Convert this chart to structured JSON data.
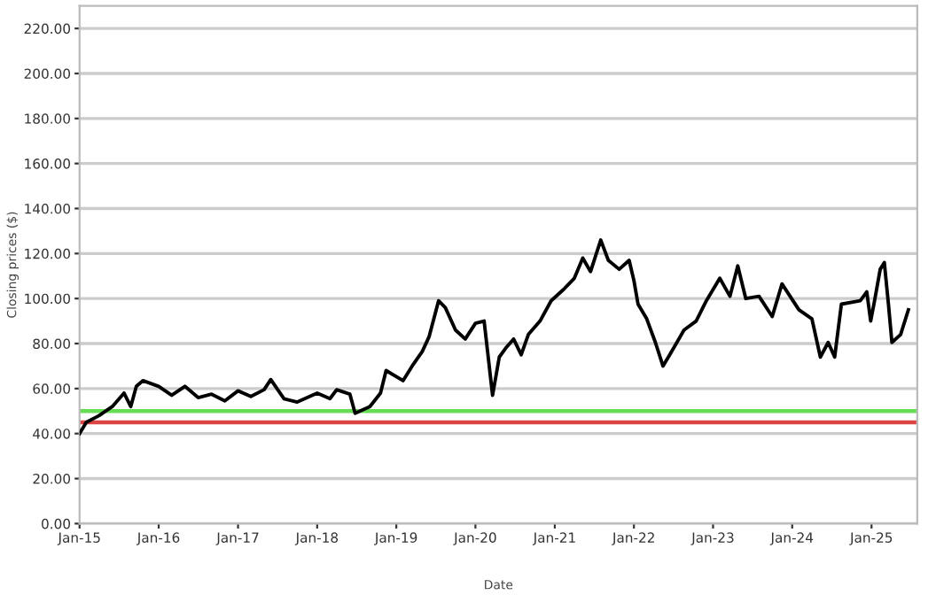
{
  "chart_data": {
    "type": "line",
    "xlabel": "Date",
    "ylabel": "Closing prices ($)",
    "x": [
      "2015-01-01",
      "2015-02-01",
      "2015-04-01",
      "2015-06-01",
      "2015-07-25",
      "2015-08-25",
      "2015-09-20",
      "2015-10-20",
      "2016-01-01",
      "2016-03-01",
      "2016-05-01",
      "2016-07-01",
      "2016-09-01",
      "2016-11-01",
      "2017-01-01",
      "2017-03-01",
      "2017-05-01",
      "2017-06-01",
      "2017-08-01",
      "2017-10-01",
      "2018-01-01",
      "2018-03-01",
      "2018-04-01",
      "2018-06-01",
      "2018-06-25",
      "2018-09-01",
      "2018-10-20",
      "2018-11-15",
      "2019-02-01",
      "2019-03-15",
      "2019-05-01",
      "2019-06-01",
      "2019-07-15",
      "2019-08-15",
      "2019-10-01",
      "2019-11-15",
      "2020-01-01",
      "2020-02-10",
      "2020-03-20",
      "2020-04-20",
      "2020-05-20",
      "2020-06-25",
      "2020-07-30",
      "2020-09-01",
      "2020-10-25",
      "2020-12-15",
      "2021-02-10",
      "2021-04-01",
      "2021-05-10",
      "2021-06-15",
      "2021-08-01",
      "2021-09-05",
      "2021-10-25",
      "2021-12-10",
      "2022-01-01",
      "2022-01-20",
      "2022-03-01",
      "2022-04-10",
      "2022-05-15",
      "2022-06-15",
      "2022-08-20",
      "2022-10-15",
      "2022-12-01",
      "2023-02-01",
      "2023-03-20",
      "2023-04-25",
      "2023-06-01",
      "2023-08-01",
      "2023-10-01",
      "2023-11-15",
      "2024-02-01",
      "2024-04-01",
      "2024-05-10",
      "2024-06-15",
      "2024-07-15",
      "2024-08-15",
      "2024-11-10",
      "2024-12-10",
      "2024-12-28",
      "2025-01-15",
      "2025-02-10",
      "2025-03-01",
      "2025-03-20",
      "2025-04-05",
      "2025-05-15",
      "2025-06-20"
    ],
    "series": [
      {
        "color": "#000000",
        "values": [
          40,
          45,
          48,
          52,
          58,
          52,
          61,
          63.5,
          61,
          57,
          61,
          56,
          57.5,
          54.5,
          59,
          56.5,
          59.5,
          64,
          55.5,
          54,
          58,
          55.5,
          59.5,
          57.5,
          49,
          52,
          58,
          68,
          63.5,
          70,
          76.5,
          83,
          99,
          96,
          86,
          82,
          89,
          90,
          57,
          74,
          78,
          82,
          75,
          84,
          90,
          99,
          104,
          109,
          118,
          112,
          126,
          117,
          113,
          117,
          108,
          97.5,
          91,
          80.5,
          70,
          75,
          86,
          90,
          99,
          109,
          101,
          114.5,
          100,
          101,
          92,
          106.5,
          95,
          91,
          74,
          80.5,
          74,
          97.5,
          99,
          103,
          90,
          99,
          113,
          116,
          97.5,
          80.5,
          84,
          95
        ]
      }
    ],
    "xlim": [
      "2015-01-01",
      "2025-07-31"
    ],
    "xticks": [
      {
        "value": "2015-01-01",
        "label": "Jan-15"
      },
      {
        "value": "2016-01-01",
        "label": "Jan-16"
      },
      {
        "value": "2017-01-01",
        "label": "Jan-17"
      },
      {
        "value": "2018-01-01",
        "label": "Jan-18"
      },
      {
        "value": "2019-01-01",
        "label": "Jan-19"
      },
      {
        "value": "2020-01-01",
        "label": "Jan-20"
      },
      {
        "value": "2021-01-01",
        "label": "Jan-21"
      },
      {
        "value": "2022-01-01",
        "label": "Jan-22"
      },
      {
        "value": "2023-01-01",
        "label": "Jan-23"
      },
      {
        "value": "2024-01-01",
        "label": "Jan-24"
      },
      {
        "value": "2025-01-01",
        "label": "Jan-25"
      }
    ],
    "ylim": [
      0,
      230
    ],
    "yticks": [
      {
        "value": 0,
        "label": "0.00"
      },
      {
        "value": 20,
        "label": "20.00"
      },
      {
        "value": 40,
        "label": "40.00"
      },
      {
        "value": 60,
        "label": "60.00"
      },
      {
        "value": 80,
        "label": "80.00"
      },
      {
        "value": 100,
        "label": "100.00"
      },
      {
        "value": 120,
        "label": "120.00"
      },
      {
        "value": 140,
        "label": "140.00"
      },
      {
        "value": 160,
        "label": "160.00"
      },
      {
        "value": 180,
        "label": "180.00"
      },
      {
        "value": 200,
        "label": "200.00"
      },
      {
        "value": 220,
        "label": "220.00"
      }
    ],
    "ref_lines": [
      {
        "axis": "y",
        "value": 50,
        "color": "#66dd55"
      },
      {
        "axis": "y",
        "value": 45,
        "color": "#dd4444"
      }
    ],
    "grid": "y",
    "line_style": "solid",
    "marker": "none"
  }
}
